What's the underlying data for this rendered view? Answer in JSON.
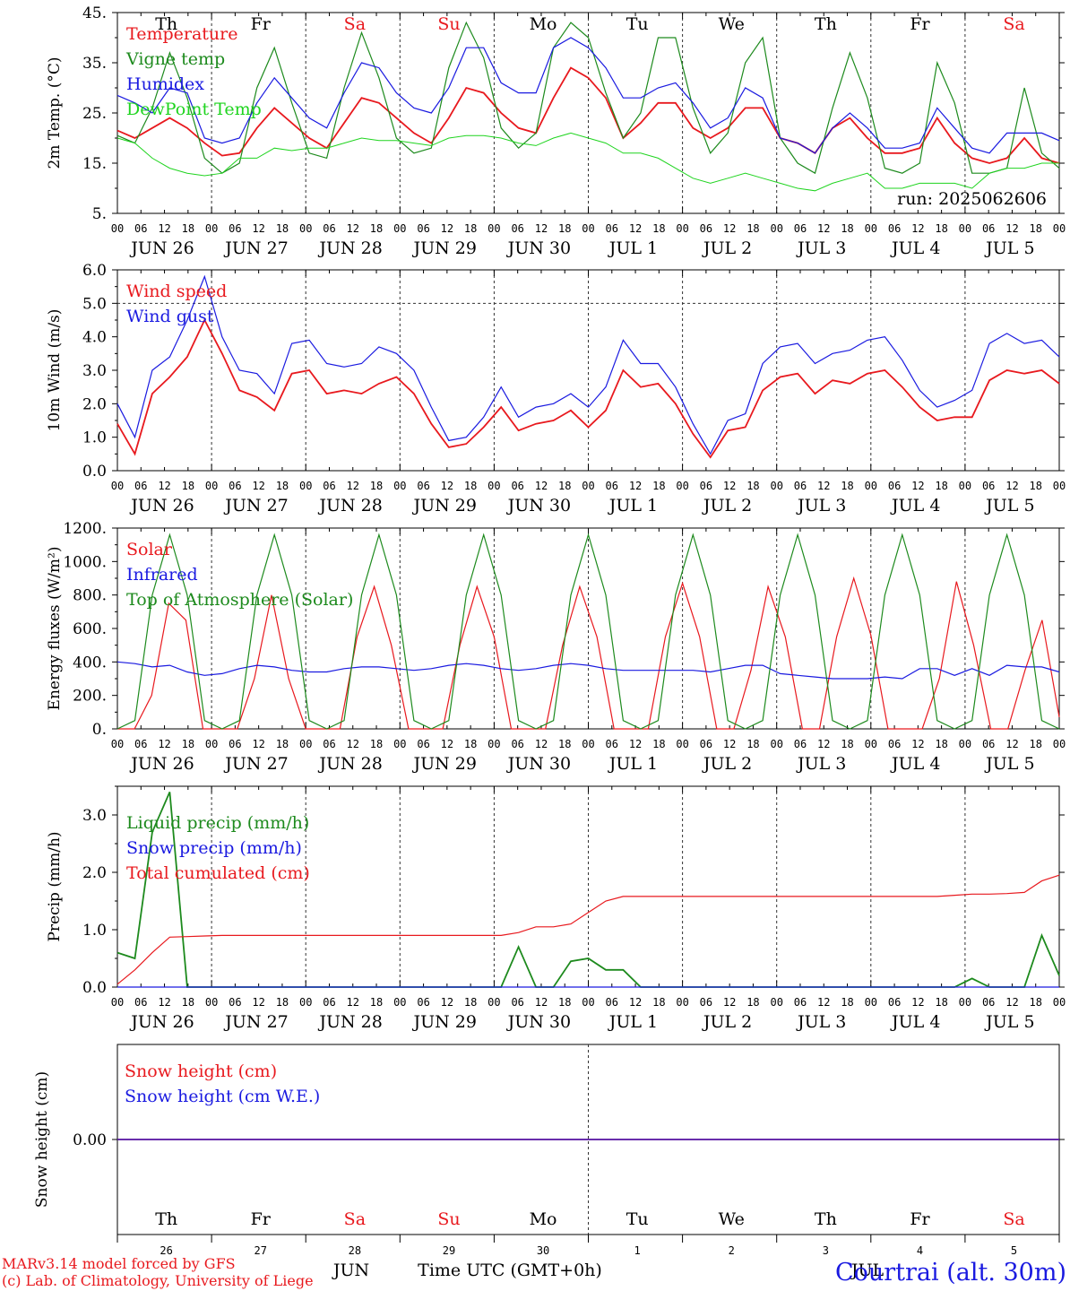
{
  "colors": {
    "red": "#e8191e",
    "green": "#1d8a1d",
    "blue": "#1a1ae0",
    "lightgreen": "#1fd41f",
    "grid": "#555555"
  },
  "days": [
    "JUN 26",
    "JUN 27",
    "JUN 28",
    "JUN 29",
    "JUN 30",
    "JUL  1",
    "JUL  2",
    "JUL  3",
    "JUL  4",
    "JUL  5"
  ],
  "hour_ticks": [
    "00",
    "06",
    "12",
    "18"
  ],
  "end_tick": "00",
  "dow": [
    {
      "label": "Th",
      "color": "#000"
    },
    {
      "label": "Fr",
      "color": "#000"
    },
    {
      "label": "Sa",
      "color": "#e8191e"
    },
    {
      "label": "Su",
      "color": "#e8191e"
    },
    {
      "label": "Mo",
      "color": "#000"
    },
    {
      "label": "Tu",
      "color": "#000"
    },
    {
      "label": "We",
      "color": "#000"
    },
    {
      "label": "Th",
      "color": "#000"
    },
    {
      "label": "Fr",
      "color": "#000"
    },
    {
      "label": "Sa",
      "color": "#e8191e"
    }
  ],
  "day_numbers": [
    "26",
    "27",
    "28",
    "29",
    "30",
    "1",
    "2",
    "3",
    "4",
    "5"
  ],
  "run_label": "run: 2025062606",
  "footer": {
    "model": "MARv3.14 model forced by GFS",
    "lab": "(c) Lab. of Climatology, University of Liege",
    "month": "JUN",
    "month2": "JUL",
    "time_label": "Time UTC (GMT+0h)",
    "station": "Courtrai (alt. 30m)"
  },
  "chart_data": [
    {
      "type": "line",
      "ylabel": "2m Temp. (°C)",
      "ylim": [
        5,
        45
      ],
      "yticks": [
        "45.",
        "35.",
        "25.",
        "15.",
        "5."
      ],
      "ytick_values": [
        45,
        35,
        25,
        15,
        5
      ],
      "series": [
        {
          "name": "Temperature",
          "color": "#e8191e",
          "values": [
            21.5,
            20,
            22,
            24,
            22,
            19,
            16.5,
            17,
            22,
            26,
            23,
            20,
            18,
            23,
            28,
            27,
            24,
            21,
            19,
            24,
            30,
            29,
            25,
            22,
            21,
            28,
            34,
            32,
            28,
            20,
            23,
            27,
            27,
            22,
            20,
            22,
            26,
            26,
            20,
            19,
            17,
            22,
            24,
            20,
            17,
            17,
            18,
            24,
            19,
            16,
            15,
            16,
            20,
            16,
            15
          ]
        },
        {
          "name": "Vigne temp",
          "color": "#1d8a1d",
          "values": [
            20.5,
            19,
            26,
            37,
            28,
            16,
            13,
            15,
            30,
            38,
            27,
            17,
            16,
            30,
            41,
            32,
            20,
            17,
            18,
            34,
            43,
            36,
            22,
            18,
            21,
            38,
            43,
            40,
            29,
            20,
            25,
            40,
            40,
            26,
            17,
            21,
            35,
            40,
            20,
            15,
            13,
            26,
            37,
            28,
            14,
            13,
            15,
            35,
            27,
            13,
            13,
            14,
            30,
            17,
            14
          ]
        },
        {
          "name": "Humidex",
          "color": "#1a1ae0",
          "values": [
            28.5,
            27,
            25,
            30,
            29,
            20,
            19,
            20,
            27,
            32,
            28,
            24,
            22,
            29,
            35,
            34,
            29,
            26,
            25,
            30,
            38,
            38,
            31,
            29,
            29,
            38,
            40,
            38,
            34,
            28,
            28,
            30,
            31,
            27,
            22,
            24,
            30,
            28,
            20,
            19,
            17,
            22,
            25,
            22,
            18,
            18,
            19,
            26,
            22,
            18,
            17,
            21,
            21,
            21,
            19.5
          ]
        },
        {
          "name": "DewPoint Temp",
          "color": "#1fd41f",
          "values": [
            20,
            19,
            16,
            14,
            13,
            12.5,
            13,
            16,
            16,
            18,
            17.5,
            18,
            18,
            19,
            20,
            19.5,
            19.5,
            19,
            18.5,
            20,
            20.5,
            20.5,
            20,
            19,
            18.5,
            20,
            21,
            20,
            19,
            17,
            17,
            16,
            14,
            12,
            11,
            12,
            13,
            12,
            11,
            10,
            9.5,
            11,
            12,
            13,
            10,
            10,
            11,
            11,
            11,
            10,
            13,
            14,
            14,
            15,
            15
          ]
        }
      ]
    },
    {
      "type": "line",
      "ylabel": "10m Wind (m/s)",
      "ylim": [
        0,
        6
      ],
      "yticks": [
        "6.0",
        "5.0",
        "4.0",
        "3.0",
        "2.0",
        "1.0",
        "0.0"
      ],
      "ytick_values": [
        6,
        5,
        4,
        3,
        2,
        1,
        0
      ],
      "reference_line": 5.0,
      "series": [
        {
          "name": "Wind speed",
          "color": "#e8191e",
          "values": [
            1.4,
            0.5,
            2.3,
            2.8,
            3.4,
            4.5,
            3.5,
            2.4,
            2.2,
            1.8,
            2.9,
            3.0,
            2.3,
            2.4,
            2.3,
            2.6,
            2.8,
            2.3,
            1.4,
            0.7,
            0.8,
            1.3,
            1.9,
            1.2,
            1.4,
            1.5,
            1.8,
            1.3,
            1.8,
            3.0,
            2.5,
            2.6,
            2.0,
            1.1,
            0.4,
            1.2,
            1.3,
            2.4,
            2.8,
            2.9,
            2.3,
            2.7,
            2.6,
            2.9,
            3.0,
            2.5,
            1.9,
            1.5,
            1.6,
            1.6,
            2.7,
            3.0,
            2.9,
            3.0,
            2.6
          ]
        },
        {
          "name": "Wind gust",
          "color": "#1a1ae0",
          "values": [
            2.0,
            1.0,
            3.0,
            3.4,
            4.5,
            5.8,
            4.0,
            3.0,
            2.9,
            2.3,
            3.8,
            3.9,
            3.2,
            3.1,
            3.2,
            3.7,
            3.5,
            3.0,
            1.9,
            0.9,
            1.0,
            1.6,
            2.5,
            1.6,
            1.9,
            2.0,
            2.3,
            1.9,
            2.5,
            3.9,
            3.2,
            3.2,
            2.5,
            1.4,
            0.5,
            1.5,
            1.7,
            3.2,
            3.7,
            3.8,
            3.2,
            3.5,
            3.6,
            3.9,
            4.0,
            3.3,
            2.4,
            1.9,
            2.1,
            2.4,
            3.8,
            4.1,
            3.8,
            3.9,
            3.4
          ]
        }
      ]
    },
    {
      "type": "line",
      "ylabel": "Energy fluxes (W/m²)",
      "ylim": [
        0,
        1200
      ],
      "yticks": [
        "1200.",
        "1000.",
        "800.",
        "600.",
        "400.",
        "200.",
        "0."
      ],
      "ytick_values": [
        1200,
        1000,
        800,
        600,
        400,
        200,
        0
      ],
      "series": [
        {
          "name": "Solar",
          "color": "#e8191e",
          "values": [
            0,
            0,
            200,
            750,
            650,
            0,
            0,
            0,
            300,
            800,
            300,
            0,
            0,
            0,
            550,
            850,
            500,
            0,
            0,
            0,
            500,
            850,
            550,
            0,
            0,
            0,
            500,
            850,
            550,
            0,
            0,
            0,
            550,
            870,
            550,
            0,
            0,
            350,
            850,
            550,
            0,
            0,
            550,
            900,
            560,
            0,
            0,
            0,
            300,
            880,
            500,
            0,
            0,
            350,
            650,
            70
          ]
        },
        {
          "name": "Infrared",
          "color": "#1a1ae0",
          "values": [
            400,
            390,
            370,
            380,
            340,
            320,
            330,
            360,
            380,
            370,
            350,
            340,
            340,
            360,
            370,
            370,
            360,
            350,
            360,
            380,
            390,
            380,
            360,
            350,
            360,
            380,
            390,
            380,
            360,
            350,
            350,
            350,
            350,
            350,
            340,
            360,
            380,
            380,
            330,
            320,
            310,
            300,
            300,
            300,
            310,
            300,
            360,
            360,
            320,
            360,
            320,
            380,
            370,
            370,
            340
          ]
        },
        {
          "name": "Top of Atmosphere (Solar)",
          "color": "#1d8a1d",
          "values": [
            0,
            50,
            800,
            1160,
            800,
            50,
            0,
            50,
            800,
            1160,
            800,
            50,
            0,
            50,
            800,
            1160,
            800,
            50,
            0,
            50,
            800,
            1160,
            800,
            50,
            0,
            50,
            800,
            1160,
            800,
            50,
            0,
            50,
            800,
            1160,
            800,
            50,
            0,
            50,
            800,
            1160,
            800,
            50,
            0,
            50,
            800,
            1160,
            800,
            50,
            0,
            50,
            800,
            1160,
            800,
            50,
            0
          ]
        }
      ]
    },
    {
      "type": "line",
      "ylabel": "Precip (mm/h)",
      "ylim": [
        0,
        3.5
      ],
      "yticks": [
        "3.0",
        "2.0",
        "1.0",
        "0.0"
      ],
      "ytick_values": [
        3,
        2,
        1,
        0
      ],
      "series": [
        {
          "name": "Liquid precip (mm/h)",
          "color": "#1d8a1d",
          "values": [
            0.6,
            0.5,
            2.7,
            3.4,
            0.0,
            0.0,
            0.0,
            0.0,
            0.0,
            0.0,
            0.0,
            0.0,
            0.0,
            0.0,
            0.0,
            0.0,
            0.0,
            0.0,
            0.0,
            0.0,
            0.0,
            0.0,
            0.0,
            0.7,
            0.0,
            0.0,
            0.45,
            0.5,
            0.3,
            0.3,
            0.0,
            0.0,
            0.0,
            0.0,
            0.0,
            0.0,
            0.0,
            0.0,
            0.0,
            0.0,
            0.0,
            0.0,
            0.0,
            0.0,
            0.0,
            0.0,
            0.0,
            0.0,
            0.0,
            0.15,
            0.0,
            0.0,
            0.0,
            0.9,
            0.2
          ]
        },
        {
          "name": "Snow precip (mm/h)",
          "color": "#1a1ae0",
          "values": [
            0,
            0,
            0,
            0,
            0,
            0,
            0,
            0,
            0,
            0,
            0,
            0,
            0,
            0,
            0,
            0,
            0,
            0,
            0,
            0,
            0,
            0,
            0,
            0,
            0,
            0,
            0,
            0,
            0,
            0,
            0,
            0,
            0,
            0,
            0,
            0,
            0,
            0,
            0,
            0,
            0,
            0,
            0,
            0,
            0,
            0,
            0,
            0,
            0,
            0,
            0,
            0,
            0,
            0,
            0
          ]
        },
        {
          "name": "Total cumulated (cm)",
          "color": "#e8191e",
          "values": [
            0.05,
            0.3,
            0.6,
            0.87,
            0.88,
            0.89,
            0.9,
            0.9,
            0.9,
            0.9,
            0.9,
            0.9,
            0.9,
            0.9,
            0.9,
            0.9,
            0.9,
            0.9,
            0.9,
            0.9,
            0.9,
            0.9,
            0.9,
            0.95,
            1.05,
            1.05,
            1.1,
            1.3,
            1.5,
            1.58,
            1.58,
            1.58,
            1.58,
            1.58,
            1.58,
            1.58,
            1.58,
            1.58,
            1.58,
            1.58,
            1.58,
            1.58,
            1.58,
            1.58,
            1.58,
            1.58,
            1.58,
            1.58,
            1.6,
            1.62,
            1.62,
            1.63,
            1.65,
            1.85,
            1.95
          ]
        }
      ]
    },
    {
      "type": "line",
      "ylabel": "Snow height (cm)",
      "ylim": [
        -1,
        1
      ],
      "yticks": [
        "0.00"
      ],
      "ytick_values": [
        0
      ],
      "series": [
        {
          "name": "Snow height (cm)",
          "color": "#e8191e",
          "values": [
            0,
            0
          ]
        },
        {
          "name": "Snow height (cm W.E.)",
          "color": "#1a1ae0",
          "values": [
            0,
            0
          ]
        }
      ]
    }
  ]
}
